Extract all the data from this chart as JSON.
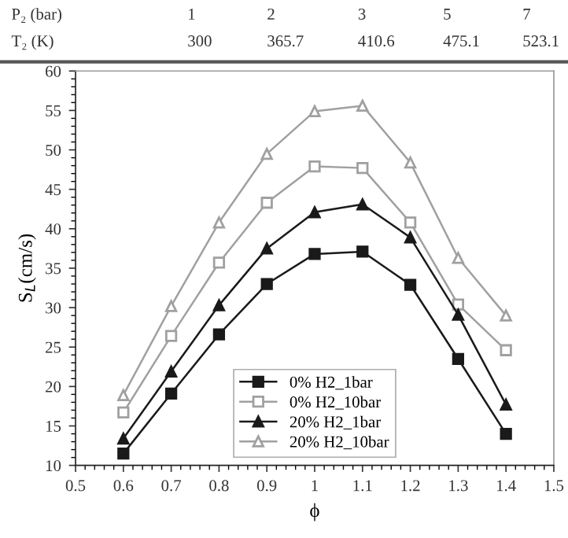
{
  "chart_data": {
    "type": "line",
    "xlabel": "ϕ",
    "ylabel": "S$_{L}$(cm/s)",
    "annotations": [
      "P₂ (bar)\t1\t2\t3\t5\t7",
      "T₂ (K)\t300\t365.7\t410.6\t475.1\t523.1"
    ],
    "x": [
      0.6,
      0.7,
      0.8,
      0.9,
      1.0,
      1.1,
      1.2,
      1.3,
      1.4
    ],
    "series": [
      {
        "name": "0% H2_1bar",
        "color": "#1a1a1a",
        "marker": "square",
        "values": [
          11.5,
          19.1,
          26.6,
          33.0,
          36.8,
          37.1,
          32.9,
          23.5,
          14.0
        ]
      },
      {
        "name": "0% H2_10bar",
        "color": "#a0a0a0",
        "marker": "square",
        "values": [
          16.7,
          26.4,
          35.7,
          43.3,
          47.9,
          47.7,
          40.8,
          30.4,
          24.6
        ]
      },
      {
        "name": "20% H2_1bar",
        "color": "#1a1a1a",
        "marker": "triangle",
        "values": [
          13.4,
          21.9,
          30.3,
          37.5,
          42.1,
          43.1,
          38.9,
          29.1,
          17.7
        ]
      },
      {
        "name": "20% H2_10bar",
        "color": "#a0a0a0",
        "marker": "triangle",
        "values": [
          18.9,
          30.2,
          40.8,
          49.5,
          54.9,
          55.6,
          48.4,
          36.3,
          29.0
        ]
      }
    ],
    "xlim": [
      0.5,
      1.5
    ],
    "xticks": [
      0.5,
      0.6,
      0.7,
      0.8,
      0.9,
      1,
      1.1,
      1.2,
      1.3,
      1.4,
      1.5
    ],
    "ylim": [
      10,
      60
    ],
    "yticks": [
      10,
      15,
      20,
      25,
      30,
      35,
      40,
      45,
      50,
      55,
      60
    ],
    "grid": false,
    "legend": "bottom",
    "line_style": "solid"
  }
}
